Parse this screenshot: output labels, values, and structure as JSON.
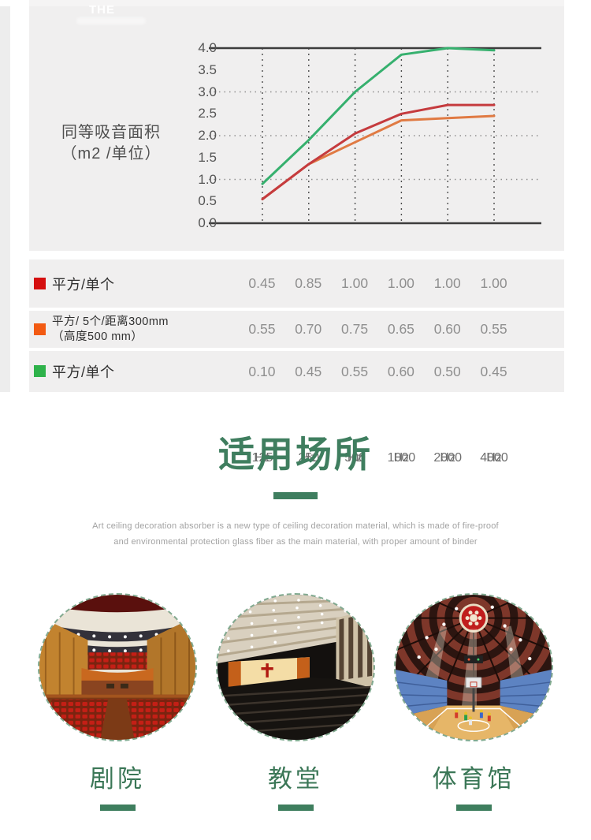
{
  "watermark": "THE",
  "chart": {
    "ylabel_line1": "同等吸音面积",
    "ylabel_line2": "（m2 /单位）"
  },
  "chart_data": {
    "type": "line",
    "title": "",
    "ylabel": "同等吸音面积（m2 /单位）",
    "x_unit": "Hz",
    "categories": [
      "125",
      "250",
      "500",
      "1000",
      "2000",
      "4000"
    ],
    "ylim": [
      0.0,
      4.0
    ],
    "ytick_labels": [
      "4.0",
      "3.5",
      "3.0",
      "2.5",
      "2.0",
      "1.5",
      "1.0",
      "0.5",
      "0.0"
    ],
    "solid_gridlines_y": [
      0.0,
      4.0
    ],
    "dotted_gridlines_y": [
      1.0,
      2.0,
      3.0
    ],
    "grid": "vertical dashed line at each frequency",
    "legend_position": "table below chart",
    "series": [
      {
        "key": "orange",
        "name": "平方/ 5个/距离300mm（高度500 mm）",
        "color": "#e07a43",
        "values": [
          0.55,
          1.35,
          1.85,
          2.35,
          2.4,
          2.45
        ]
      },
      {
        "key": "red",
        "name": "平方/单个",
        "color": "#c53b3e",
        "values": [
          0.55,
          1.35,
          2.05,
          2.5,
          2.7,
          2.7
        ]
      },
      {
        "key": "green",
        "name": "平方/单个",
        "color": "#36b06e",
        "values": [
          0.9,
          1.9,
          3.0,
          3.85,
          4.0,
          3.95
        ]
      }
    ]
  },
  "table": {
    "rows": [
      {
        "swatch_color": "#d50f0f",
        "label": "平方/单个",
        "label_line2": "",
        "values": [
          "0.45",
          "0.85",
          "1.00",
          "1.00",
          "1.00",
          "1.00"
        ]
      },
      {
        "swatch_color": "#f25a12",
        "label": "平方/ 5个/距离300mm",
        "label_line2": "（高度500 mm）",
        "values": [
          "0.55",
          "0.70",
          "0.75",
          "0.65",
          "0.60",
          "0.55"
        ]
      },
      {
        "swatch_color": "#2eb24a",
        "label": "平方/单个",
        "label_line2": "",
        "values": [
          "0.10",
          "0.45",
          "0.55",
          "0.60",
          "0.50",
          "0.45"
        ]
      }
    ]
  },
  "section": {
    "title": "适用场所",
    "description_line1": "Art ceiling decoration absorber is a new type of ceiling decoration material, which is made of fire-proof",
    "description_line2": "and environmental protection glass fiber as the main material, with proper amount of binder"
  },
  "venues": [
    {
      "label": "剧院"
    },
    {
      "label": "教堂"
    },
    {
      "label": "体育馆"
    }
  ],
  "colors": {
    "accent_green": "#3f7e5f",
    "panel_bg": "#f0efef",
    "line_red": "#c53b3e",
    "line_orange": "#e07a43",
    "line_green": "#36b06e",
    "swatch_red": "#d50f0f",
    "swatch_orange": "#f25a12",
    "swatch_green": "#2eb24a"
  }
}
